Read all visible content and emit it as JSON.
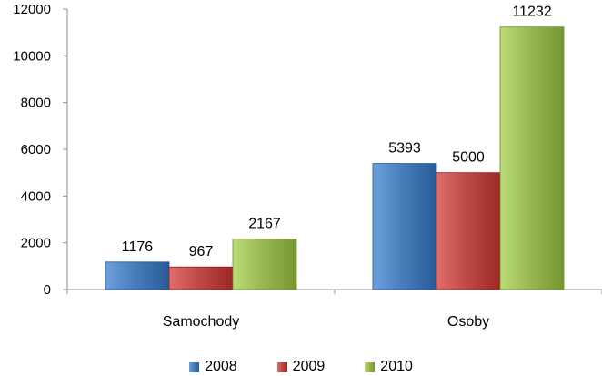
{
  "chart_data": {
    "type": "bar",
    "categories": [
      "Samochody",
      "Osoby"
    ],
    "series": [
      {
        "name": "2008",
        "values": [
          1176,
          5393
        ],
        "color": "#4a7ebb"
      },
      {
        "name": "2009",
        "values": [
          967,
          5000
        ],
        "color": "#be4b48"
      },
      {
        "name": "2010",
        "values": [
          2167,
          11232
        ],
        "color": "#98b954"
      }
    ],
    "title": "",
    "xlabel": "",
    "ylabel": "",
    "ylim": [
      0,
      12000
    ],
    "yticks": [
      "0",
      "2000",
      "4000",
      "6000",
      "8000",
      "10000",
      "12000"
    ],
    "grid": false,
    "legend_position": "bottom"
  }
}
